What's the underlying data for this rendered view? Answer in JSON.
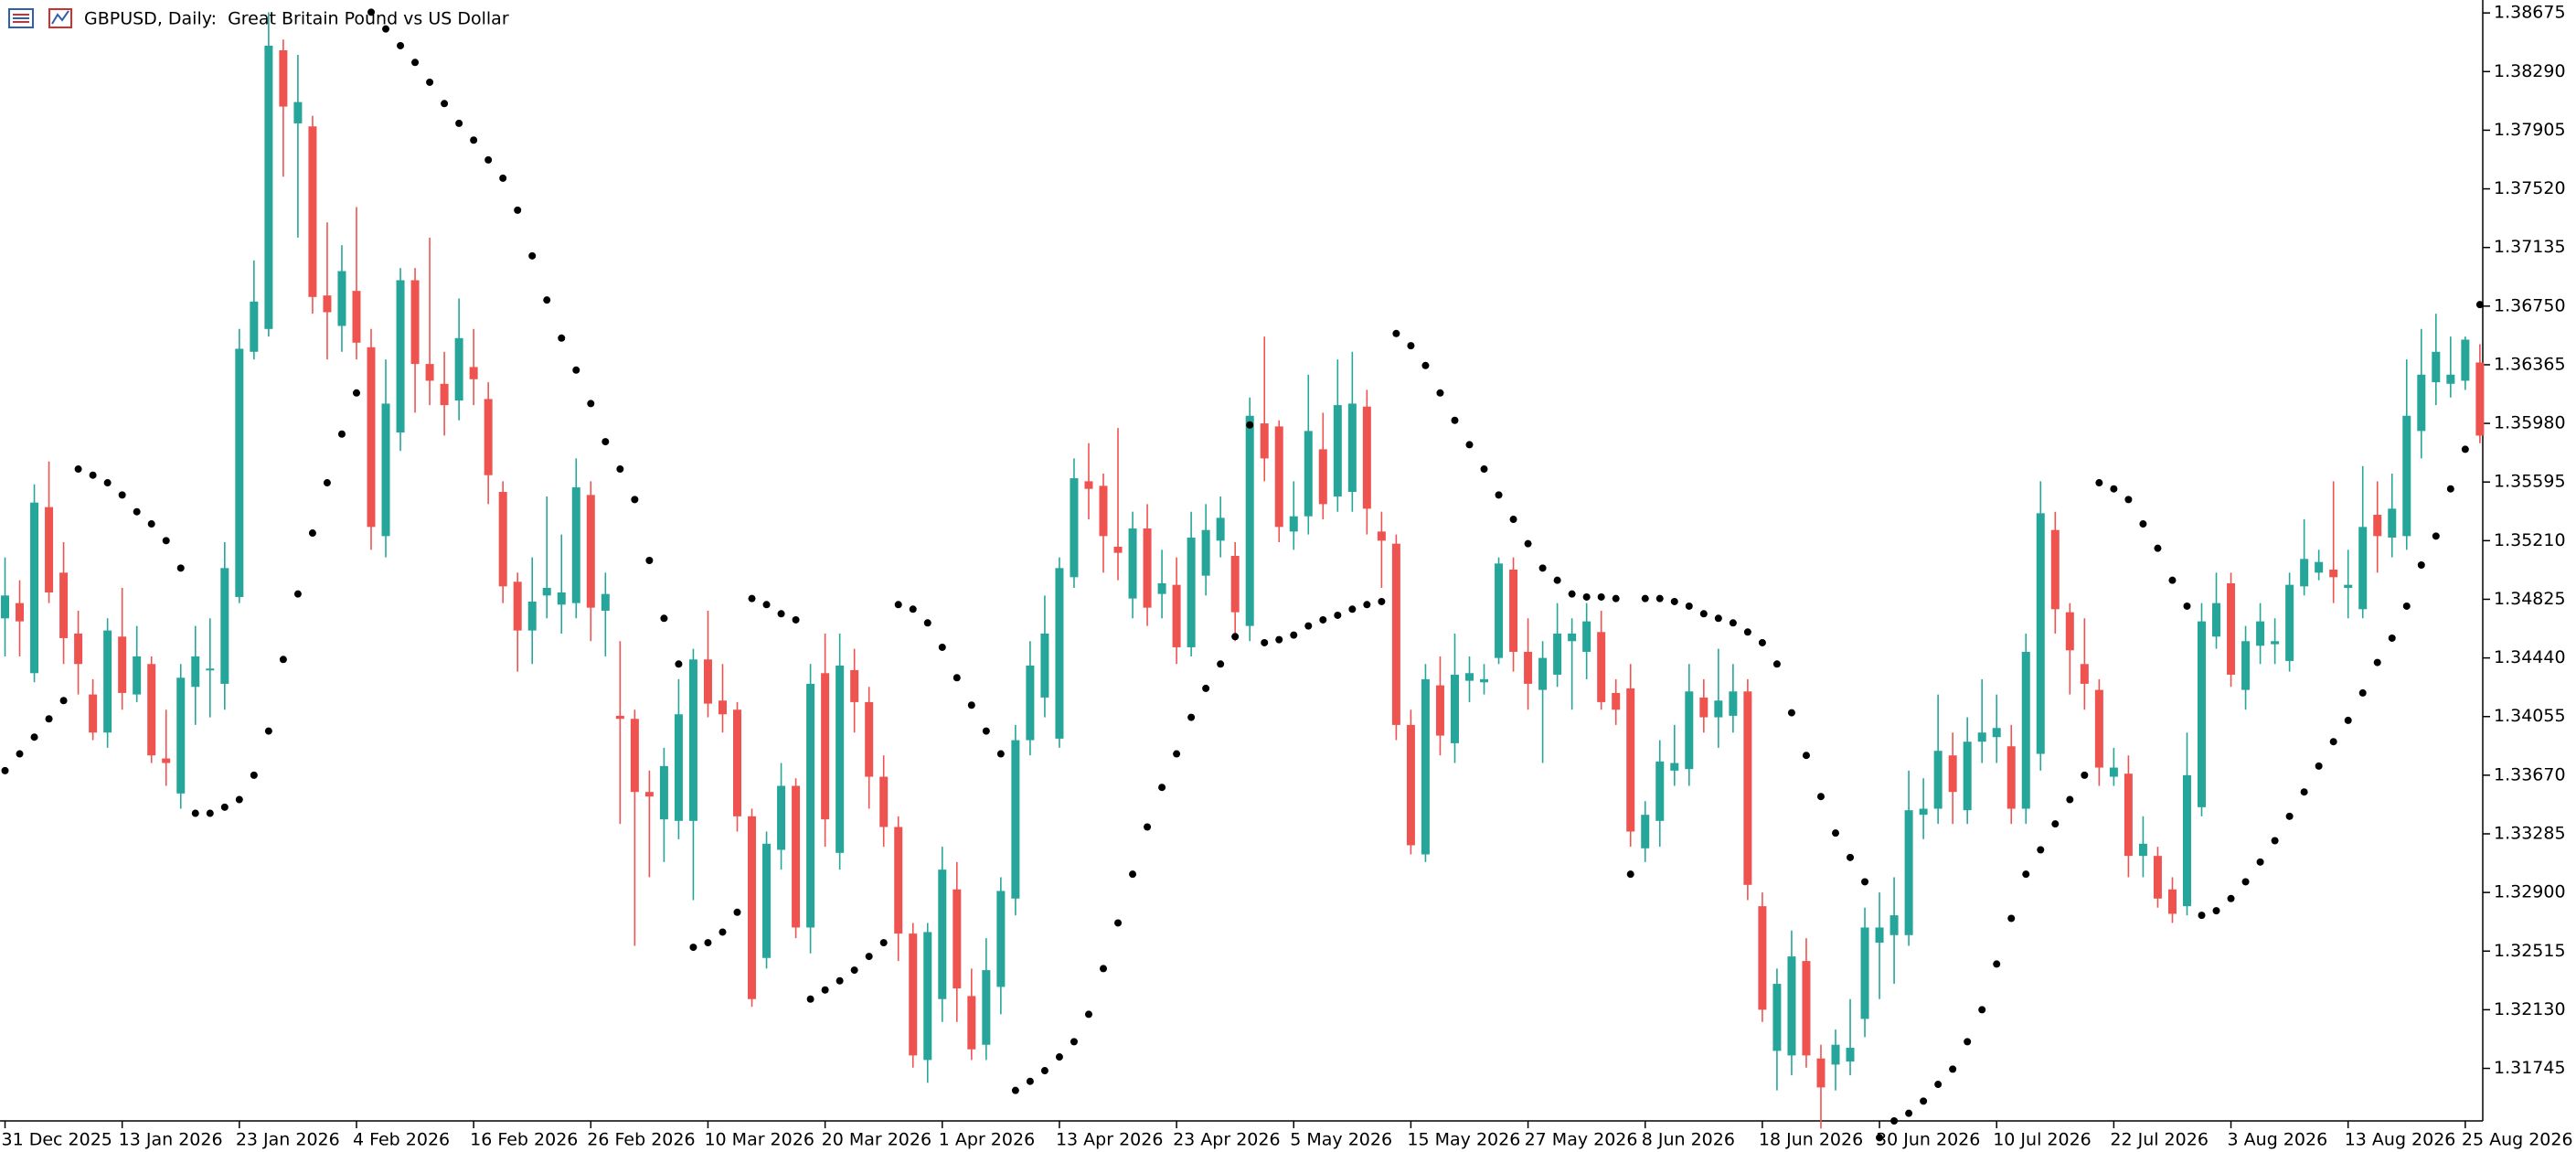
{
  "chart_data": {
    "type": "candlestick",
    "title": "GBPUSD, Daily:  Great Britain Pound vs US Dollar",
    "categories": [
      "31 Dec 2025",
      null,
      null,
      null,
      null,
      null,
      null,
      null,
      "13 Jan 2026",
      null,
      null,
      null,
      null,
      null,
      null,
      null,
      "23 Jan 2026",
      null,
      null,
      null,
      null,
      null,
      null,
      null,
      "4 Feb 2026",
      null,
      null,
      null,
      null,
      null,
      null,
      null,
      "16 Feb 2026",
      null,
      null,
      null,
      null,
      null,
      null,
      null,
      "26 Feb 2026",
      null,
      null,
      null,
      null,
      null,
      null,
      null,
      "10 Mar 2026",
      null,
      null,
      null,
      null,
      null,
      null,
      null,
      "20 Mar 2026",
      null,
      null,
      null,
      null,
      null,
      null,
      null,
      "1 Apr 2026",
      null,
      null,
      null,
      null,
      null,
      null,
      null,
      "13 Apr 2026",
      null,
      null,
      null,
      null,
      null,
      null,
      null,
      "23 Apr 2026",
      null,
      null,
      null,
      null,
      null,
      null,
      null,
      "5 May 2026",
      null,
      null,
      null,
      null,
      null,
      null,
      null,
      "15 May 2026",
      null,
      null,
      null,
      null,
      null,
      null,
      null,
      "27 May 2026",
      null,
      null,
      null,
      null,
      null,
      null,
      null,
      "8 Jun 2026",
      null,
      null,
      null,
      null,
      null,
      null,
      null,
      "18 Jun 2026",
      null,
      null,
      null,
      null,
      null,
      null,
      null,
      "30 Jun 2026",
      null,
      null,
      null,
      null,
      null,
      null,
      null,
      "10 Jul 2026",
      null,
      null,
      null,
      null,
      null,
      null,
      null,
      "22 Jul 2026",
      null,
      null,
      null,
      null,
      null,
      null,
      null,
      "3 Aug 2026",
      null,
      null,
      null,
      null,
      null,
      null,
      null,
      "13 Aug 2026",
      null,
      null,
      null,
      null,
      null,
      null,
      null,
      "25 Aug 2026",
      null
    ],
    "open": [
      1.347,
      1.348,
      1.3434,
      1.3543,
      1.35,
      1.346,
      1.342,
      1.3395,
      1.3458,
      1.342,
      1.344,
      1.3378,
      1.3355,
      1.3425,
      1.3437,
      1.3427,
      1.3484,
      1.3645,
      1.366,
      1.3843,
      1.3795,
      1.3793,
      1.3682,
      1.3662,
      1.3685,
      1.3648,
      1.3524,
      1.3592,
      1.3692,
      1.3637,
      1.3624,
      1.3613,
      1.3635,
      1.3614,
      1.3553,
      1.3494,
      1.3462,
      1.3485,
      1.3479,
      1.348,
      1.3551,
      1.3475,
      1.3406,
      1.3404,
      1.3356,
      1.3338,
      1.3337,
      1.3337,
      1.3443,
      1.3416,
      1.341,
      1.334,
      1.3247,
      1.3318,
      1.336,
      1.3267,
      1.3434,
      1.3316,
      1.3436,
      1.3415,
      1.3366,
      1.3333,
      1.3263,
      1.318,
      1.322,
      1.3292,
      1.3222,
      1.319,
      1.3228,
      1.3286,
      1.339,
      1.3418,
      1.3391,
      1.3497,
      1.356,
      1.3557,
      1.3517,
      1.3483,
      1.3529,
      1.3486,
      1.3492,
      1.3451,
      1.3498,
      1.3521,
      1.3511,
      1.3465,
      1.3598,
      1.3596,
      1.3527,
      1.3537,
      1.3581,
      1.355,
      1.3553,
      1.3609,
      1.3527,
      1.3519,
      1.34,
      1.3315,
      1.3426,
      1.3388,
      1.3429,
      1.3428,
      1.3444,
      1.3502,
      1.3448,
      1.3423,
      1.3433,
      1.3455,
      1.3448,
      1.3461,
      1.3421,
      1.3424,
      1.3319,
      1.3337,
      1.337,
      1.3371,
      1.3418,
      1.3405,
      1.3406,
      1.3422,
      1.3281,
      1.3186,
      1.3183,
      1.3245,
      1.3181,
      1.3177,
      1.3179,
      1.3207,
      1.3257,
      1.3262,
      1.3262,
      1.3341,
      1.3345,
      1.338,
      1.3344,
      1.3389,
      1.3392,
      1.3386,
      1.3345,
      1.3381,
      1.3528,
      1.3474,
      1.344,
      1.3423,
      1.3366,
      1.3368,
      1.3314,
      1.3314,
      1.3292,
      1.3281,
      1.3346,
      1.3458,
      1.3493,
      1.3423,
      1.3452,
      1.3453,
      1.3442,
      1.3491,
      1.35,
      1.3502,
      1.349,
      1.3476,
      1.3538,
      1.3523,
      1.3524,
      1.3593,
      1.3625,
      1.3624,
      1.3626,
      1.3638
    ],
    "high": [
      1.351,
      1.3495,
      1.3558,
      1.3573,
      1.352,
      1.3475,
      1.343,
      1.347,
      1.349,
      1.3465,
      1.3445,
      1.341,
      1.344,
      1.3465,
      1.347,
      1.352,
      1.366,
      1.3705,
      1.3868,
      1.385,
      1.384,
      1.38,
      1.373,
      1.3715,
      1.374,
      1.366,
      1.364,
      1.37,
      1.37,
      1.372,
      1.3645,
      1.368,
      1.366,
      1.3625,
      1.356,
      1.35,
      1.351,
      1.355,
      1.3525,
      1.3575,
      1.356,
      1.35,
      1.3455,
      1.341,
      1.337,
      1.3385,
      1.343,
      1.345,
      1.3475,
      1.344,
      1.3415,
      1.3345,
      1.333,
      1.3375,
      1.3365,
      1.344,
      1.346,
      1.346,
      1.345,
      1.3425,
      1.338,
      1.334,
      1.327,
      1.327,
      1.332,
      1.331,
      1.324,
      1.326,
      1.33,
      1.34,
      1.3455,
      1.3485,
      1.351,
      1.3575,
      1.3585,
      1.3565,
      1.3595,
      1.354,
      1.3545,
      1.3515,
      1.351,
      1.354,
      1.3545,
      1.355,
      1.352,
      1.3615,
      1.3655,
      1.36,
      1.356,
      1.363,
      1.3605,
      1.364,
      1.3645,
      1.362,
      1.354,
      1.3525,
      1.341,
      1.344,
      1.3445,
      1.346,
      1.3445,
      1.344,
      1.351,
      1.351,
      1.347,
      1.3455,
      1.348,
      1.347,
      1.348,
      1.3475,
      1.343,
      1.344,
      1.335,
      1.339,
      1.34,
      1.344,
      1.343,
      1.345,
      1.344,
      1.343,
      1.329,
      1.324,
      1.3265,
      1.326,
      1.319,
      1.32,
      1.322,
      1.328,
      1.329,
      1.33,
      1.337,
      1.3365,
      1.342,
      1.3395,
      1.3405,
      1.343,
      1.342,
      1.34,
      1.346,
      1.356,
      1.354,
      1.348,
      1.347,
      1.343,
      1.3385,
      1.338,
      1.334,
      1.332,
      1.33,
      1.3395,
      1.348,
      1.35,
      1.35,
      1.3465,
      1.348,
      1.347,
      1.35,
      1.3535,
      1.3515,
      1.356,
      1.3515,
      1.357,
      1.356,
      1.3565,
      1.364,
      1.366,
      1.367,
      1.3655,
      1.3655,
      1.365
    ],
    "low": [
      1.3445,
      1.3445,
      1.3428,
      1.348,
      1.344,
      1.342,
      1.339,
      1.3385,
      1.341,
      1.3415,
      1.3375,
      1.336,
      1.3345,
      1.34,
      1.3405,
      1.341,
      1.348,
      1.364,
      1.3655,
      1.376,
      1.372,
      1.367,
      1.364,
      1.3645,
      1.364,
      1.3515,
      1.351,
      1.358,
      1.3605,
      1.361,
      1.359,
      1.36,
      1.361,
      1.3545,
      1.348,
      1.3435,
      1.344,
      1.347,
      1.346,
      1.347,
      1.3455,
      1.3445,
      1.3335,
      1.3255,
      1.33,
      1.331,
      1.3325,
      1.3285,
      1.3405,
      1.3395,
      1.333,
      1.3215,
      1.324,
      1.3305,
      1.326,
      1.325,
      1.332,
      1.3305,
      1.3395,
      1.3345,
      1.332,
      1.3245,
      1.3175,
      1.3165,
      1.3205,
      1.3205,
      1.318,
      1.318,
      1.321,
      1.3275,
      1.338,
      1.3405,
      1.3385,
      1.349,
      1.3535,
      1.35,
      1.3495,
      1.347,
      1.3465,
      1.347,
      1.344,
      1.3445,
      1.3485,
      1.351,
      1.3455,
      1.3455,
      1.356,
      1.352,
      1.3515,
      1.3525,
      1.3535,
      1.354,
      1.354,
      1.3525,
      1.349,
      1.339,
      1.3315,
      1.331,
      1.338,
      1.3375,
      1.3415,
      1.342,
      1.344,
      1.3435,
      1.341,
      1.3375,
      1.3425,
      1.341,
      1.343,
      1.341,
      1.34,
      1.332,
      1.331,
      1.332,
      1.336,
      1.336,
      1.3395,
      1.3385,
      1.3395,
      1.3285,
      1.3205,
      1.316,
      1.317,
      1.3175,
      1.3135,
      1.316,
      1.317,
      1.3195,
      1.322,
      1.323,
      1.3255,
      1.3325,
      1.3335,
      1.3335,
      1.3335,
      1.3375,
      1.3375,
      1.3335,
      1.3335,
      1.337,
      1.346,
      1.342,
      1.341,
      1.336,
      1.336,
      1.33,
      1.33,
      1.328,
      1.327,
      1.3275,
      1.334,
      1.345,
      1.3425,
      1.341,
      1.344,
      1.344,
      1.3435,
      1.3485,
      1.3495,
      1.348,
      1.347,
      1.347,
      1.35,
      1.351,
      1.3515,
      1.3575,
      1.361,
      1.3615,
      1.362,
      1.3585
    ],
    "close": [
      1.3485,
      1.3468,
      1.3546,
      1.3487,
      1.3457,
      1.344,
      1.3395,
      1.3462,
      1.3421,
      1.3445,
      1.338,
      1.3375,
      1.3431,
      1.3445,
      1.3437,
      1.3503,
      1.3647,
      1.3678,
      1.3846,
      1.3806,
      1.3809,
      1.3681,
      1.3671,
      1.3698,
      1.3651,
      1.353,
      1.3611,
      1.3692,
      1.3637,
      1.3626,
      1.361,
      1.3654,
      1.3627,
      1.3564,
      1.3491,
      1.3462,
      1.3481,
      1.349,
      1.3487,
      1.3556,
      1.3477,
      1.3486,
      1.3404,
      1.3356,
      1.3353,
      1.3373,
      1.3407,
      1.3443,
      1.3414,
      1.3407,
      1.334,
      1.322,
      1.3322,
      1.336,
      1.3267,
      1.3427,
      1.3338,
      1.3439,
      1.3415,
      1.3366,
      1.3333,
      1.3263,
      1.3183,
      1.3264,
      1.3305,
      1.3227,
      1.3187,
      1.3239,
      1.3291,
      1.339,
      1.3439,
      1.346,
      1.3503,
      1.3562,
      1.3555,
      1.3524,
      1.3513,
      1.3529,
      1.3477,
      1.3493,
      1.3451,
      1.3523,
      1.3528,
      1.3536,
      1.3474,
      1.3603,
      1.3575,
      1.353,
      1.3537,
      1.3593,
      1.3545,
      1.361,
      1.3611,
      1.3542,
      1.3521,
      1.34,
      1.3321,
      1.343,
      1.3393,
      1.3433,
      1.3434,
      1.343,
      1.3506,
      1.3448,
      1.3427,
      1.3444,
      1.346,
      1.346,
      1.3468,
      1.3415,
      1.341,
      1.333,
      1.3341,
      1.3376,
      1.3375,
      1.3422,
      1.3405,
      1.3416,
      1.3422,
      1.3295,
      1.3213,
      1.323,
      1.3248,
      1.3183,
      1.3162,
      1.319,
      1.3188,
      1.3267,
      1.3267,
      1.3275,
      1.3344,
      1.3345,
      1.3383,
      1.3356,
      1.3389,
      1.3395,
      1.3398,
      1.3345,
      1.3448,
      1.3539,
      1.3476,
      1.3449,
      1.3427,
      1.3372,
      1.3372,
      1.3314,
      1.3322,
      1.3286,
      1.3276,
      1.3367,
      1.3468,
      1.348,
      1.3433,
      1.3455,
      1.3468,
      1.3455,
      1.3492,
      1.3509,
      1.3507,
      1.3497,
      1.3492,
      1.353,
      1.3524,
      1.3542,
      1.3603,
      1.363,
      1.3645,
      1.363,
      1.3653,
      1.359
    ],
    "sar": [
      1.337,
      1.3381,
      1.3392,
      1.3404,
      1.3416,
      1.3568,
      1.3564,
      1.3559,
      1.3551,
      1.354,
      1.3532,
      1.3521,
      1.3503,
      1.3342,
      1.3342,
      1.3346,
      1.3351,
      1.3367,
      1.3396,
      1.3443,
      1.3486,
      1.3526,
      1.3559,
      1.3591,
      1.3618,
      1.3868,
      1.3857,
      1.3846,
      1.3835,
      1.3822,
      1.3808,
      1.3795,
      1.3784,
      1.3771,
      1.3759,
      1.3738,
      1.3708,
      1.3679,
      1.3654,
      1.3633,
      1.3611,
      1.3586,
      1.3568,
      1.3548,
      1.3508,
      1.347,
      1.344,
      1.3254,
      1.3257,
      1.3264,
      1.3277,
      1.3483,
      1.3479,
      1.3473,
      1.3469,
      1.322,
      1.3226,
      1.3232,
      1.3239,
      1.3248,
      1.3257,
      1.3479,
      1.3476,
      1.3467,
      1.3451,
      1.3431,
      1.3413,
      1.3396,
      1.3381,
      1.316,
      1.3166,
      1.3173,
      1.3182,
      1.3192,
      1.321,
      1.324,
      1.327,
      1.3302,
      1.3333,
      1.3359,
      1.3381,
      1.3405,
      1.3424,
      1.344,
      1.3458,
      1.3597,
      1.3454,
      1.3456,
      1.3459,
      1.3465,
      1.3469,
      1.3472,
      1.3476,
      1.3479,
      1.3481,
      1.3657,
      1.3649,
      1.3636,
      1.3618,
      1.36,
      1.3584,
      1.3568,
      1.3551,
      1.3535,
      1.3519,
      1.3503,
      1.3495,
      1.3486,
      1.3484,
      1.3484,
      1.3483,
      1.3302,
      1.3483,
      1.3483,
      1.3481,
      1.3478,
      1.3473,
      1.347,
      1.3467,
      1.3461,
      1.3454,
      1.344,
      1.3408,
      1.338,
      1.3353,
      1.3329,
      1.3313,
      1.3297,
      1.3129,
      1.314,
      1.3145,
      1.3153,
      1.3164,
      1.3174,
      1.3192,
      1.3213,
      1.3243,
      1.3273,
      1.3302,
      1.3318,
      1.3335,
      1.3351,
      1.3367,
      1.3559,
      1.3555,
      1.3548,
      1.3532,
      1.3516,
      1.3495,
      1.3478,
      1.3275,
      1.3278,
      1.3286,
      1.3297,
      1.331,
      1.3324,
      1.334,
      1.3356,
      1.3373,
      1.3389,
      1.3403,
      1.3421,
      1.3441,
      1.3457,
      1.3478,
      1.3505,
      1.3524,
      1.3555,
      1.3581,
      1.3676
    ],
    "up_color": "#26a69a",
    "down_color": "#ef5350",
    "sar_color": "#000000",
    "ylim": [
      1.314,
      1.3876
    ],
    "yticks": [
      1.38675,
      {
        "value": 1.3829,
        "label": "1.38290"
      },
      1.37905,
      {
        "value": 1.3752,
        "label": "1.37520"
      },
      1.37135,
      {
        "value": 1.3675,
        "label": "1.36750"
      },
      1.36365,
      {
        "value": 1.3598,
        "label": "1.35980"
      },
      1.35595,
      {
        "value": 1.3521,
        "label": "1.35210"
      },
      1.34825,
      {
        "value": 1.3444,
        "label": "1.34440"
      },
      1.34055,
      {
        "value": 1.3367,
        "label": "1.33670"
      },
      1.33285,
      {
        "value": 1.329,
        "label": "1.32900"
      },
      1.32515,
      {
        "value": 1.3213,
        "label": "1.32130"
      },
      1.31745
    ],
    "grid": false
  }
}
